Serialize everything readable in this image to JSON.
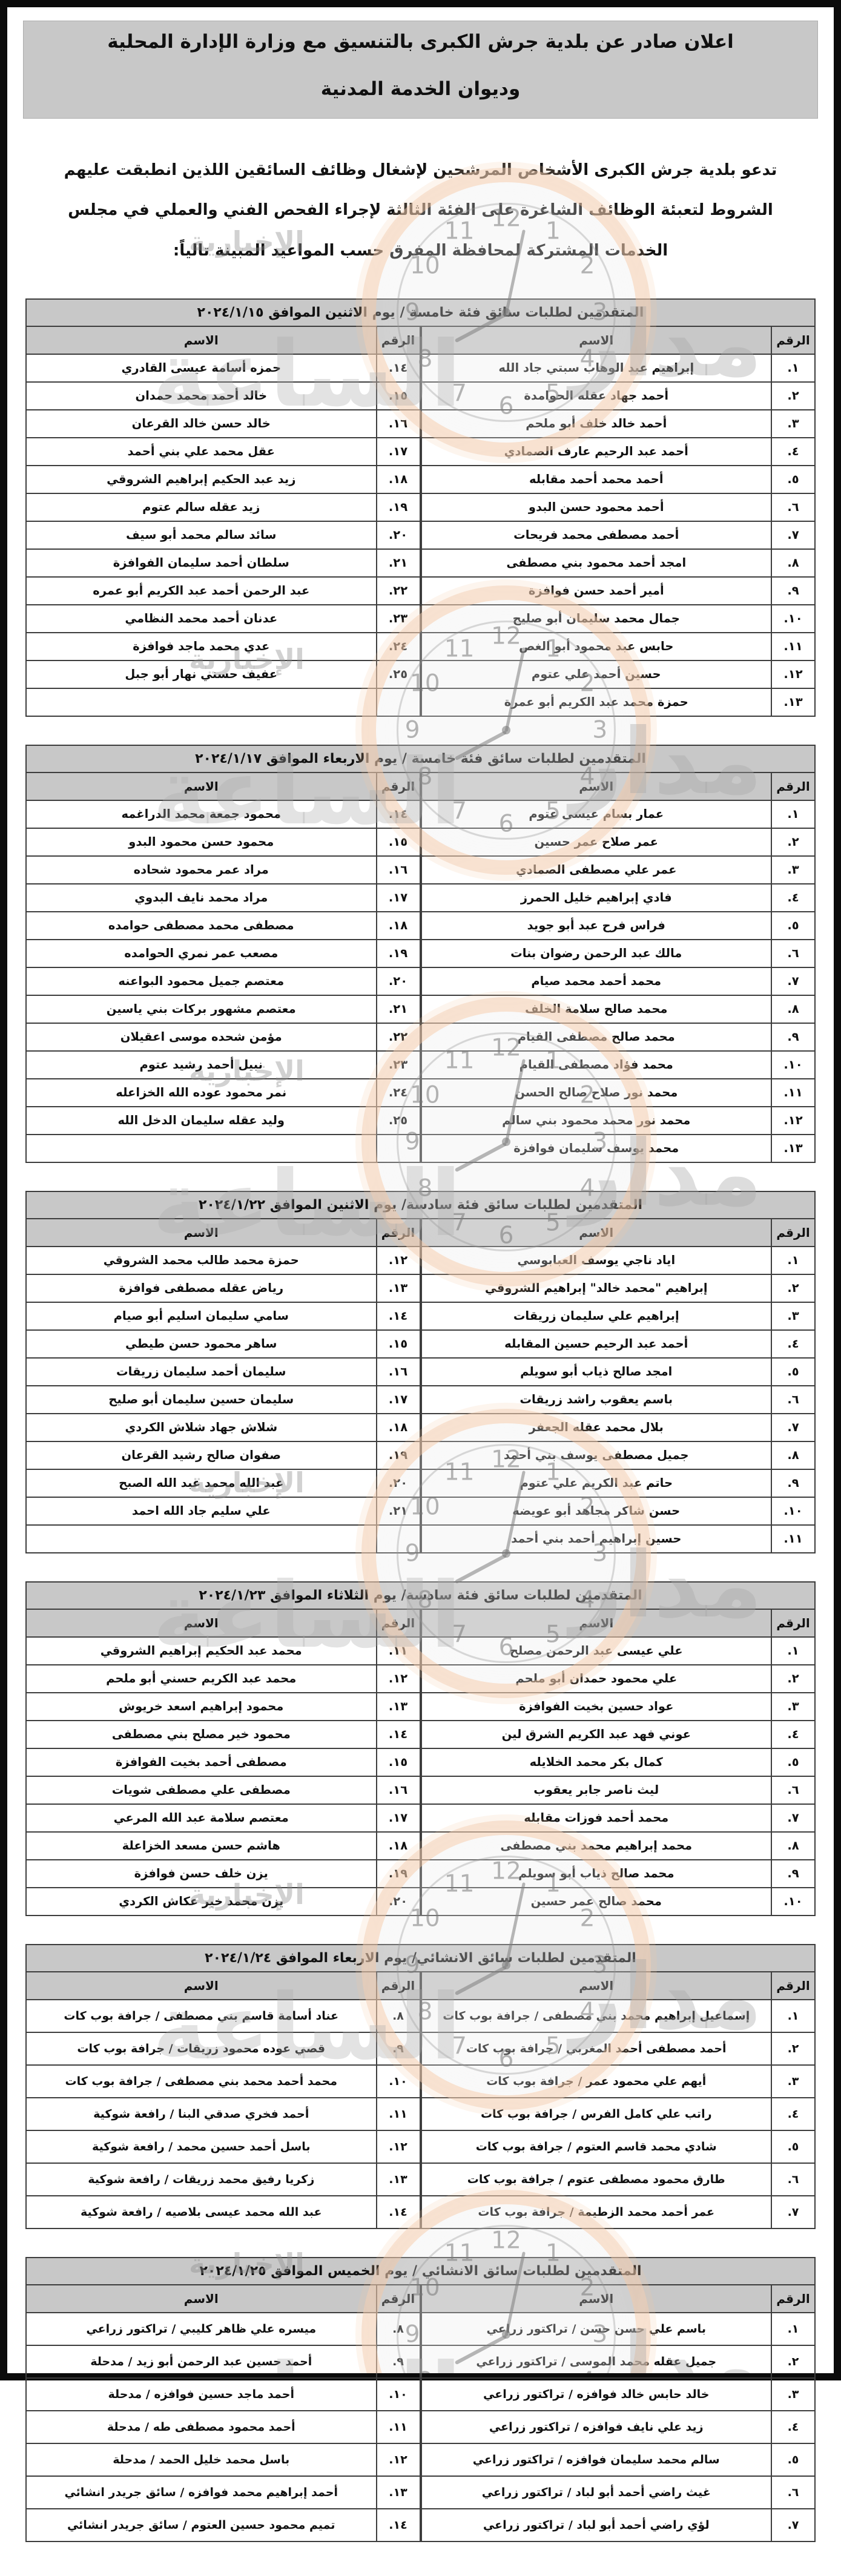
{
  "colors": {
    "header_bg": "#c8c8c8",
    "border": "#3d3d3d",
    "watermark_orange": "#f6c5a0",
    "watermark_gray": "#b3b3b3"
  },
  "title": {
    "line1": "اعلان صادر عن بلدية جرش الكبرى بالتنسيق مع وزارة الإدارة المحلية",
    "line2": "وديوان الخدمة المدنية"
  },
  "intro": "تدعو بلدية جرش الكبرى الأشخاص المرشحين لإشغال وظائف السائقين اللذين انطبقت عليهم الشروط لتعبئة الوظائف الشاغرة على الفئة الثالثة لإجراء الفحص الفني والعملي في مجلس الخدمات المشتركة لمحافظة المفرق حسب المواعيد المبينة تالياً:",
  "col_headers": {
    "no": "الرقم",
    "name": "الاسم"
  },
  "tables": [
    {
      "title": "المتقدمين لطلبات سائق فئة خامسة / يوم الاثنين الموافق ٢٠٢٤/١/١٥",
      "right": [
        {
          "no": "١.",
          "name": "إبراهيم عبد الوهاب سبتي جاد الله"
        },
        {
          "no": "٢.",
          "name": "أحمد جهاد عقله الحوامدة"
        },
        {
          "no": "٣.",
          "name": "أحمد خالد خلف أبو ملحم"
        },
        {
          "no": "٤.",
          "name": "أحمد عبد الرحيم عارف الصمادي"
        },
        {
          "no": "٥.",
          "name": "أحمد محمد أحمد مقابله"
        },
        {
          "no": "٦.",
          "name": "أحمد محمود حسن البدو"
        },
        {
          "no": "٧.",
          "name": "أحمد مصطفى محمد فريحات"
        },
        {
          "no": "٨.",
          "name": "امجد أحمد محمود بني مصطفى"
        },
        {
          "no": "٩.",
          "name": "أمير أحمد حسن فوافزة"
        },
        {
          "no": "١٠.",
          "name": "جمال محمد سليمان أبو صليح"
        },
        {
          "no": "١١.",
          "name": "حابس عبد محمود أبو الغص"
        },
        {
          "no": "١٢.",
          "name": "حسين أحمد علي عتوم"
        },
        {
          "no": "١٣.",
          "name": "حمزة محمد عبد الكريم أبو عمرة"
        }
      ],
      "left": [
        {
          "no": "١٤.",
          "name": "حمزه أسامة عيسى القادري"
        },
        {
          "no": "١٥.",
          "name": "خالد أحمد محمد حمدان"
        },
        {
          "no": "١٦.",
          "name": "خالد حسن خالد القرعان"
        },
        {
          "no": "١٧.",
          "name": "عقل محمد علي بني أحمد"
        },
        {
          "no": "١٨.",
          "name": "زيد عبد الحكيم إبراهيم الشروقي"
        },
        {
          "no": "١٩.",
          "name": "زيد عقله سالم عتوم"
        },
        {
          "no": "٢٠.",
          "name": "سائد سالم محمد أبو سيف"
        },
        {
          "no": "٢١.",
          "name": "سلطان أحمد سليمان الفوافزة"
        },
        {
          "no": "٢٢.",
          "name": "عبد الرحمن أحمد عبد الكريم أبو عمره"
        },
        {
          "no": "٢٣.",
          "name": "عدنان أحمد محمد النظامي"
        },
        {
          "no": "٢٤.",
          "name": "عدي محمد ماجد فوافزة"
        },
        {
          "no": "٢٥.",
          "name": "عفيف حسني نهار أبو جبل"
        }
      ]
    },
    {
      "title": "المتقدمين لطلبات سائق فئة خامسة / يوم الاربعاء الموافق ٢٠٢٤/١/١٧",
      "right": [
        {
          "no": "١.",
          "name": "عمار بسام عيسى عتوم"
        },
        {
          "no": "٢.",
          "name": "عمر صلاح عمر حسين"
        },
        {
          "no": "٣.",
          "name": "عمر علي مصطفى الصمادي"
        },
        {
          "no": "٤.",
          "name": "فادي إبراهيم خليل الحمرز"
        },
        {
          "no": "٥.",
          "name": "فراس فرح عبد أبو جويد"
        },
        {
          "no": "٦.",
          "name": "مالك عبد الرحمن رضوان بنات"
        },
        {
          "no": "٧.",
          "name": "محمد أحمد محمد صيام"
        },
        {
          "no": "٨.",
          "name": "محمد صالح سلامة الخلف"
        },
        {
          "no": "٩.",
          "name": "محمد صالح مصطفى القيام"
        },
        {
          "no": "١٠.",
          "name": "محمد فؤاد مصطفى القيام"
        },
        {
          "no": "١١.",
          "name": "محمد نور صلاح صالح الحسن"
        },
        {
          "no": "١٢.",
          "name": "محمد نور محمد محمود بني سالم"
        },
        {
          "no": "١٣.",
          "name": "محمد يوسف سليمان فوافزة"
        }
      ],
      "left": [
        {
          "no": "١٤.",
          "name": "محمود جمعة محمد الدراغمه"
        },
        {
          "no": "١٥.",
          "name": "محمود حسن محمود البدو"
        },
        {
          "no": "١٦.",
          "name": "مراد عمر محمود شحاده"
        },
        {
          "no": "١٧.",
          "name": "مراد محمد نايف البدوي"
        },
        {
          "no": "١٨.",
          "name": "مصطفى محمد مصطفى حوامده"
        },
        {
          "no": "١٩.",
          "name": "مصعب عمر نمري الحوامده"
        },
        {
          "no": "٢٠.",
          "name": "معتصم جميل محمود البواعنه"
        },
        {
          "no": "٢١.",
          "name": "معتصم مشهور بركات بني ياسين"
        },
        {
          "no": "٢٢.",
          "name": "مؤمن شحده موسى اعقيلان"
        },
        {
          "no": "٢٣.",
          "name": "نبيل أحمد رشيد عتوم"
        },
        {
          "no": "٢٤.",
          "name": "نمر محمود عوده الله الخزاعله"
        },
        {
          "no": "٢٥.",
          "name": "وليد عقله سليمان الدخل الله"
        }
      ]
    },
    {
      "title": "المتقدمين لطلبات سائق فئة سادسة/ يوم الاثنين الموافق ٢٠٢٤/١/٢٢",
      "right": [
        {
          "no": "١.",
          "name": "اياد ناجي يوسف العبابوسي"
        },
        {
          "no": "٢.",
          "name": "إبراهيم \"محمد خالد\" إبراهيم الشروقي"
        },
        {
          "no": "٣.",
          "name": "إبراهيم علي سليمان زريقات"
        },
        {
          "no": "٤.",
          "name": "أحمد عبد الرحيم حسين المقابله"
        },
        {
          "no": "٥.",
          "name": "امجد صالح ذياب أبو سويلم"
        },
        {
          "no": "٦.",
          "name": "باسم يعقوب راشد زريقات"
        },
        {
          "no": "٧.",
          "name": "بلال محمد عقله الجعفر"
        },
        {
          "no": "٨.",
          "name": "جميل مصطفى يوسف بني أحمد"
        },
        {
          "no": "٩.",
          "name": "حاتم عبد الكريم علي عتوم"
        },
        {
          "no": "١٠.",
          "name": "حسن شاكر مجاهد أبو عويضه"
        },
        {
          "no": "١١.",
          "name": "حسين إبراهيم أحمد بني أحمد"
        }
      ],
      "left": [
        {
          "no": "١٢.",
          "name": "حمزة محمد طالب محمد الشروقي"
        },
        {
          "no": "١٣.",
          "name": "رياض عقله مصطفى فوافزة"
        },
        {
          "no": "١٤.",
          "name": "سامي سليمان اسليم أبو صيام"
        },
        {
          "no": "١٥.",
          "name": "ساهر محمود حسن طيطي"
        },
        {
          "no": "١٦.",
          "name": "سليمان أحمد سليمان زريقات"
        },
        {
          "no": "١٧.",
          "name": "سليمان حسين سليمان أبو صليح"
        },
        {
          "no": "١٨.",
          "name": "شلاش جهاد شلاش الكردي"
        },
        {
          "no": "١٩.",
          "name": "صفوان صالح رشيد القرعان"
        },
        {
          "no": "٢٠.",
          "name": "عبد الله محمد عبد الله الصبح"
        },
        {
          "no": "٢١.",
          "name": "علي سليم جاد الله احمد"
        }
      ]
    },
    {
      "title": "المتقدمين لطلبات سائق فئة سادسة/ يوم الثلاثاء الموافق ٢٠٢٤/١/٢٣",
      "right": [
        {
          "no": "١.",
          "name": "علي عيسى عبد الرحمن مصلح"
        },
        {
          "no": "٢.",
          "name": "علي محمود حمدان أبو ملحم"
        },
        {
          "no": "٣.",
          "name": "عواد حسين بخيت الفوافزة"
        },
        {
          "no": "٤.",
          "name": "عوني فهد عبد الكريم الشرق لين"
        },
        {
          "no": "٥.",
          "name": "كمال بكر محمد الخلايله"
        },
        {
          "no": "٦.",
          "name": "ليث ناصر جابر يعقوب"
        },
        {
          "no": "٧.",
          "name": "محمد أحمد فوزات مقابله"
        },
        {
          "no": "٨.",
          "name": "محمد إبراهيم محمد بني مصطفى"
        },
        {
          "no": "٩.",
          "name": "محمد صالح ذياب أبو سويلم"
        },
        {
          "no": "١٠.",
          "name": "محمد صالح عمر حسين"
        }
      ],
      "left": [
        {
          "no": "١١.",
          "name": "محمد عبد الحكيم إبراهيم الشروقي"
        },
        {
          "no": "١٢.",
          "name": "محمد عبد الكريم حسني أبو ملحم"
        },
        {
          "no": "١٣.",
          "name": "محمود إبراهيم اسعد خريوش"
        },
        {
          "no": "١٤.",
          "name": "محمود خير مصلح بني مصطفى"
        },
        {
          "no": "١٥.",
          "name": "مصطفى أحمد بخيت الفوافزة"
        },
        {
          "no": "١٦.",
          "name": "مصطفى علي مصطفى شويات"
        },
        {
          "no": "١٧.",
          "name": "معتصم سلامة عبد الله المرعي"
        },
        {
          "no": "١٨.",
          "name": "هاشم حسن مسعد الخزاعلة"
        },
        {
          "no": "١٩.",
          "name": "يزن خلف حسن فوافزة"
        },
        {
          "no": "٢٠.",
          "name": "يزن محمد خير عكاش الكردي"
        }
      ]
    },
    {
      "title": "المتقدمين لطلبات سائق الانشائي/ يوم الاربعاء الموافق ٢٠٢٤/١/٢٤",
      "small": true,
      "right": [
        {
          "no": "١.",
          "name": "إسماعيل إبراهيم محمد بني مصطفى / جرافة بوب كات"
        },
        {
          "no": "٢.",
          "name": "أحمد مصطفى أحمد المغربي / جرافة بوب كات"
        },
        {
          "no": "٣.",
          "name": "أيهم علي محمود عمر / جرافة بوب كات"
        },
        {
          "no": "٤.",
          "name": "راتب علي كامل الفرس / جرافة بوب كات"
        },
        {
          "no": "٥.",
          "name": "شادي محمد قاسم العتوم / جرافة بوب كات"
        },
        {
          "no": "٦.",
          "name": "طارق محمود مصطفى عتوم / جرافة بوب كات"
        },
        {
          "no": "٧.",
          "name": "عمر أحمد محمد الزطيمة / جرافة بوب كات"
        }
      ],
      "left": [
        {
          "no": "٨.",
          "name": "عناد أسامة قاسم بني مصطفى / جرافة بوب كات"
        },
        {
          "no": "٩.",
          "name": "قصي عوده محمود زريقات / جرافة بوب كات"
        },
        {
          "no": "١٠.",
          "name": "محمد أحمد محمد بني مصطفى / جرافة بوب كات"
        },
        {
          "no": "١١.",
          "name": "أحمد فخري صدقي البنا / رافعة شوكية"
        },
        {
          "no": "١٢.",
          "name": "باسل أحمد حسين محمد / رافعة شوكية"
        },
        {
          "no": "١٣.",
          "name": "زكريا رفيق محمد زريقات / رافعة شوكية"
        },
        {
          "no": "١٤.",
          "name": "عبد الله محمد عيسى بلاصيه / رافعة شوكية"
        }
      ]
    },
    {
      "title": "المتقدمين لطلبات سائق الانشائي / يوم الخميس الموافق ٢٠٢٤/١/٢٥",
      "small": true,
      "right": [
        {
          "no": "١.",
          "name": "باسم علي حسن حسن / تراكتور زراعي"
        },
        {
          "no": "٢.",
          "name": "جميل عقله محمد الموسى / تراكتور زراعي"
        },
        {
          "no": "٣.",
          "name": "خالد حابس خالد فوافزه / تراكتور زراعي"
        },
        {
          "no": "٤.",
          "name": "زيد علي نايف فوافزه / تراكتور زراعي"
        },
        {
          "no": "٥.",
          "name": "سالم محمد سليمان فوافزه / تراكتور زراعي"
        },
        {
          "no": "٦.",
          "name": "غيث راضي أحمد أبو لباد / تراكتور زراعي"
        },
        {
          "no": "٧.",
          "name": "لؤي راضي أحمد أبو لباد / تراكتور زراعي"
        }
      ],
      "left": [
        {
          "no": "٨.",
          "name": "ميسره علي ظاهر كليبي / تراكتور زراعي"
        },
        {
          "no": "٩.",
          "name": "أحمد حسين عبد الرحمن أبو زيد / مدحلة"
        },
        {
          "no": "١٠.",
          "name": "أحمد ماجد حسين فوافزه / مدحلة"
        },
        {
          "no": "١١.",
          "name": "أحمد محمود مصطفى طه / مدحلة"
        },
        {
          "no": "١٢.",
          "name": "باسل محمد خليل الحمد / مدحلة"
        },
        {
          "no": "١٣.",
          "name": "أحمد إبراهيم محمد فوافزه / سائق جريدر انشائي"
        },
        {
          "no": "١٤.",
          "name": "تميم محمود حسين العتوم / سائق جريدر انشائي"
        }
      ]
    }
  ],
  "watermark": {
    "clock_numbers": [
      "12",
      "1",
      "2",
      "3",
      "4",
      "5",
      "6",
      "7",
      "8",
      "9",
      "10",
      "11"
    ],
    "brand_words": {
      "w1": "مدار",
      "w2": "الساعة",
      "w3": "الإخبارية"
    }
  }
}
